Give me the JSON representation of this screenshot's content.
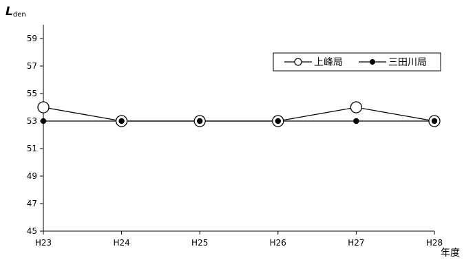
{
  "chart_data": {
    "type": "line",
    "title": "",
    "ylabel_main": "L",
    "ylabel_sub": "den",
    "xlabel": "年度",
    "categories": [
      "H23",
      "H24",
      "H25",
      "H26",
      "H27",
      "H28"
    ],
    "ylim": [
      45,
      60
    ],
    "yticks": [
      45,
      47,
      49,
      51,
      53,
      55,
      57,
      59
    ],
    "grid": false,
    "legend_position": "top-right",
    "series": [
      {
        "name": "上峰局",
        "marker": "open-circle",
        "color": "#000000",
        "values": [
          54,
          53,
          53,
          53,
          54,
          53
        ]
      },
      {
        "name": "三田川局",
        "marker": "filled-circle",
        "color": "#000000",
        "values": [
          53,
          53,
          53,
          53,
          53,
          53
        ]
      }
    ]
  }
}
